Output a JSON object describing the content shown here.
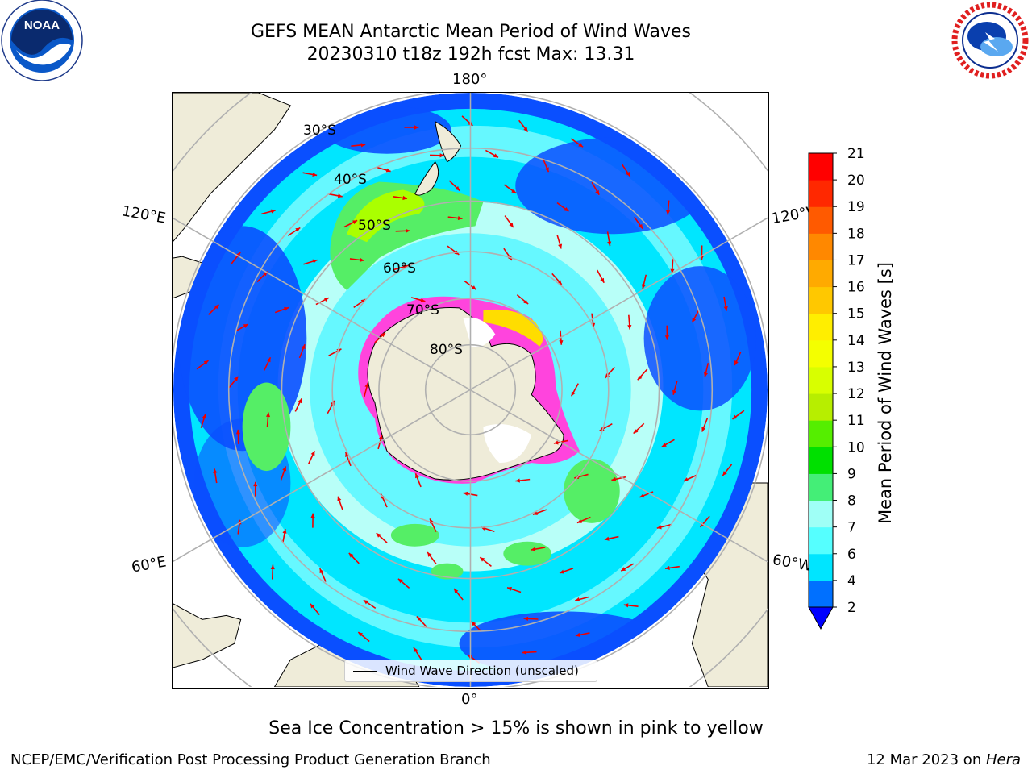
{
  "title": {
    "line1": "GEFS MEAN Antarctic Mean Period of Wind Waves",
    "line2": "20230310 t18z 192h fcst   Max: 13.31"
  },
  "logos": {
    "noaa_text": "NOAA",
    "noaa_ring_text": "NATIONAL OCEANIC AND ATMOSPHERIC ADMINISTRATION · U.S. DEPARTMENT OF COMMERCE",
    "nws_ring_text": "NATIONAL WEATHER SERVICE"
  },
  "map": {
    "projection": "south-polar-stereographic",
    "longitude_labels": {
      "top": "180°",
      "bottom": "0°",
      "upper_left": "120°E",
      "lower_left": "60°E",
      "upper_right": "120°W",
      "lower_right": "60°W"
    },
    "latitude_labels": [
      "30°S",
      "40°S",
      "50°S",
      "60°S",
      "70°S",
      "80°S"
    ],
    "colors": {
      "land": "#efecd9",
      "ocean_2_4": "#0a4fff",
      "ocean_4_6": "#00e6ff",
      "ocean_6_8": "#66f8ff",
      "ocean_8_9": "#b8fff8",
      "ocean_9_10": "#55ee66",
      "ocean_10_11": "#22ee00",
      "ocean_12_13": "#aaff00",
      "ocean_13_14": "#ddff00",
      "sea_ice": "#ff44dd",
      "sea_ice_high": "#ffdd00",
      "arrows": "#ee0000",
      "grid": "#b0b0b0"
    }
  },
  "legend": {
    "label": "Wind Wave Direction (unscaled)"
  },
  "colorbar": {
    "label": "Mean Period of Wind Waves [s]",
    "ticks": [
      "2",
      "4",
      "6",
      "7",
      "8",
      "9",
      "10",
      "11",
      "12",
      "13",
      "14",
      "15",
      "16",
      "17",
      "18",
      "19",
      "20",
      "21"
    ],
    "colors": [
      "#0000ff",
      "#0070ff",
      "#00e5ff",
      "#55ffff",
      "#9ffff6",
      "#44ee77",
      "#00e000",
      "#55ee00",
      "#b7ee00",
      "#d8ff00",
      "#f4ff00",
      "#ffee00",
      "#ffc800",
      "#ffaa00",
      "#ff8800",
      "#ff5a00",
      "#ff2800",
      "#ff0000"
    ]
  },
  "caption": "Sea Ice Concentration > 15% is shown in pink to yellow",
  "footer": {
    "left": "NCEP/EMC/Verification Post Processing Product Generation Branch",
    "right_date": "12 Mar 2023 on ",
    "right_system": "Hera"
  }
}
